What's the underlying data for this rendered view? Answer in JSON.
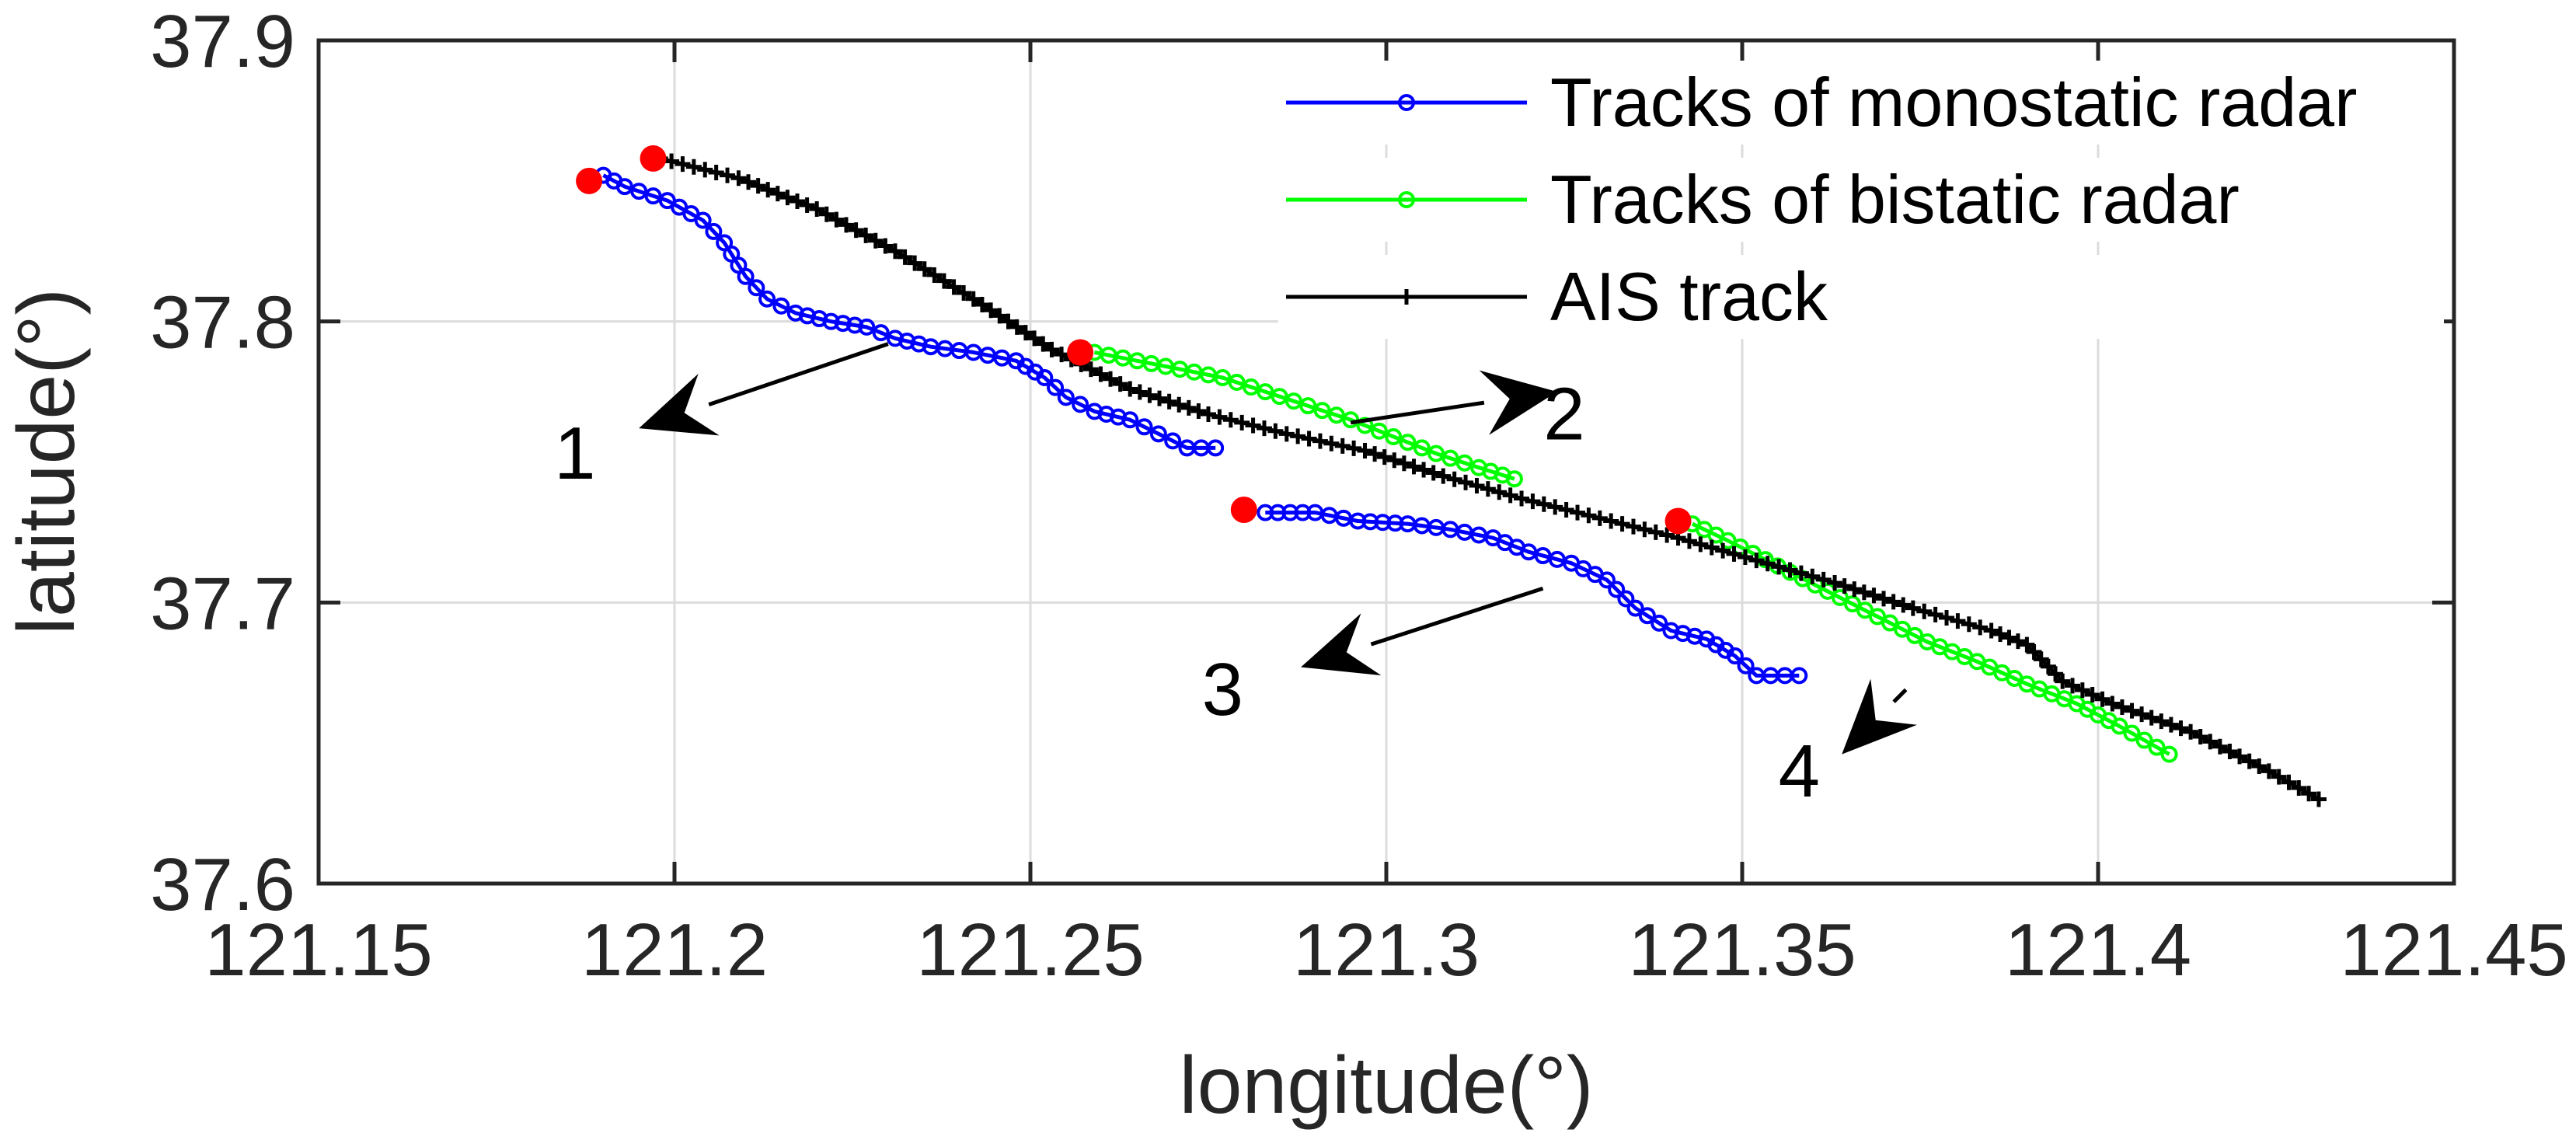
{
  "chart_data": {
    "type": "line",
    "title": "",
    "xlabel": "longitude(°)",
    "ylabel": "latitude(°)",
    "xlim": [
      121.15,
      121.45
    ],
    "ylim": [
      37.6,
      37.9
    ],
    "xticks": [
      121.15,
      121.2,
      121.25,
      121.3,
      121.35,
      121.4,
      121.45
    ],
    "xtick_labels": [
      "121.15",
      "121.2",
      "121.25",
      "121.3",
      "121.35",
      "121.4",
      "121.45"
    ],
    "yticks": [
      37.6,
      37.7,
      37.8,
      37.9
    ],
    "ytick_labels": [
      "37.6",
      "37.7",
      "37.8",
      "37.9"
    ],
    "grid": true,
    "legend_position": "top-right",
    "legend": [
      {
        "label": "Tracks of monostatic radar",
        "color": "#0000ff",
        "marker": "circle"
      },
      {
        "label": "Tracks of bistatic radar",
        "color": "#00ff00",
        "marker": "circle"
      },
      {
        "label": "AIS track",
        "color": "#000000",
        "marker": "plus"
      }
    ],
    "series": [
      {
        "kind": "monostatic",
        "color": "#0000ff",
        "marker": "circle",
        "points": [
          [
            121.19,
            37.852
          ],
          [
            121.193,
            37.848
          ],
          [
            121.199,
            37.843
          ],
          [
            121.204,
            37.836
          ],
          [
            121.207,
            37.828
          ],
          [
            121.21,
            37.816
          ],
          [
            121.213,
            37.808
          ],
          [
            121.217,
            37.803
          ],
          [
            121.222,
            37.8
          ],
          [
            121.227,
            37.798
          ],
          [
            121.231,
            37.794
          ],
          [
            121.236,
            37.791
          ],
          [
            121.242,
            37.789
          ],
          [
            121.248,
            37.786
          ],
          [
            121.252,
            37.78
          ],
          [
            121.255,
            37.773
          ],
          [
            121.259,
            37.768
          ],
          [
            121.264,
            37.765
          ],
          [
            121.268,
            37.76
          ],
          [
            121.272,
            37.755
          ],
          [
            121.276,
            37.755
          ]
        ]
      },
      {
        "kind": "monostatic",
        "color": "#0000ff",
        "marker": "circle",
        "points": [
          [
            121.283,
            37.732
          ],
          [
            121.29,
            37.732
          ],
          [
            121.296,
            37.729
          ],
          [
            121.303,
            37.728
          ],
          [
            121.309,
            37.726
          ],
          [
            121.315,
            37.723
          ],
          [
            121.32,
            37.718
          ],
          [
            121.326,
            37.714
          ],
          [
            121.331,
            37.708
          ],
          [
            121.335,
            37.698
          ],
          [
            121.34,
            37.69
          ],
          [
            121.345,
            37.687
          ],
          [
            121.349,
            37.681
          ],
          [
            121.352,
            37.674
          ],
          [
            121.358,
            37.674
          ]
        ]
      },
      {
        "kind": "bistatic",
        "color": "#00ff00",
        "marker": "circle",
        "points": [
          [
            121.259,
            37.789
          ],
          [
            121.265,
            37.786
          ],
          [
            121.271,
            37.783
          ],
          [
            121.277,
            37.78
          ],
          [
            121.283,
            37.775
          ],
          [
            121.289,
            37.77
          ],
          [
            121.295,
            37.765
          ],
          [
            121.301,
            37.759
          ],
          [
            121.307,
            37.753
          ],
          [
            121.313,
            37.748
          ],
          [
            121.318,
            37.744
          ]
        ]
      },
      {
        "kind": "bistatic",
        "color": "#00ff00",
        "marker": "circle",
        "points": [
          [
            121.343,
            37.728
          ],
          [
            121.348,
            37.722
          ],
          [
            121.355,
            37.713
          ],
          [
            121.362,
            37.704
          ],
          [
            121.369,
            37.695
          ],
          [
            121.376,
            37.686
          ],
          [
            121.383,
            37.679
          ],
          [
            121.39,
            37.671
          ],
          [
            121.397,
            37.664
          ],
          [
            121.403,
            37.656
          ],
          [
            121.41,
            37.646
          ]
        ]
      },
      {
        "kind": "ais",
        "color": "#000000",
        "marker": "plus",
        "points": [
          [
            121.198,
            37.858
          ],
          [
            121.209,
            37.851
          ],
          [
            121.22,
            37.84
          ],
          [
            121.231,
            37.825
          ],
          [
            121.242,
            37.808
          ],
          [
            121.253,
            37.79
          ],
          [
            121.264,
            37.776
          ],
          [
            121.275,
            37.767
          ],
          [
            121.286,
            37.76
          ],
          [
            121.297,
            37.754
          ],
          [
            121.308,
            37.745
          ],
          [
            121.319,
            37.737
          ],
          [
            121.33,
            37.73
          ],
          [
            121.341,
            37.723
          ],
          [
            121.352,
            37.715
          ],
          [
            121.363,
            37.707
          ],
          [
            121.374,
            37.698
          ],
          [
            121.385,
            37.69
          ],
          [
            121.39,
            37.685
          ],
          [
            121.395,
            37.672
          ],
          [
            121.402,
            37.664
          ],
          [
            121.413,
            37.654
          ],
          [
            121.424,
            37.64
          ],
          [
            121.431,
            37.63
          ]
        ]
      }
    ],
    "start_points": [
      [
        121.188,
        37.85
      ],
      [
        121.197,
        37.858
      ],
      [
        121.257,
        37.789
      ],
      [
        121.28,
        37.733
      ],
      [
        121.341,
        37.729
      ]
    ],
    "start_point_color": "#ff0000",
    "annotations": [
      {
        "text": "1",
        "text_at": [
          121.186,
          37.744
        ],
        "arrow_from": [
          121.23,
          37.792
        ],
        "arrow_to": [
          121.195,
          37.762
        ]
      },
      {
        "text": "2",
        "text_at": [
          121.325,
          37.758
        ],
        "arrow_from": [
          121.295,
          37.764
        ],
        "arrow_to": [
          121.324,
          37.775
        ]
      },
      {
        "text": "3",
        "text_at": [
          121.277,
          37.66
        ],
        "arrow_from": [
          121.322,
          37.705
        ],
        "arrow_to": [
          121.288,
          37.677
        ]
      },
      {
        "text": "4",
        "text_at": [
          121.358,
          37.631
        ],
        "arrow_from": [
          121.373,
          37.669
        ],
        "arrow_to": [
          121.364,
          37.646
        ]
      }
    ]
  }
}
